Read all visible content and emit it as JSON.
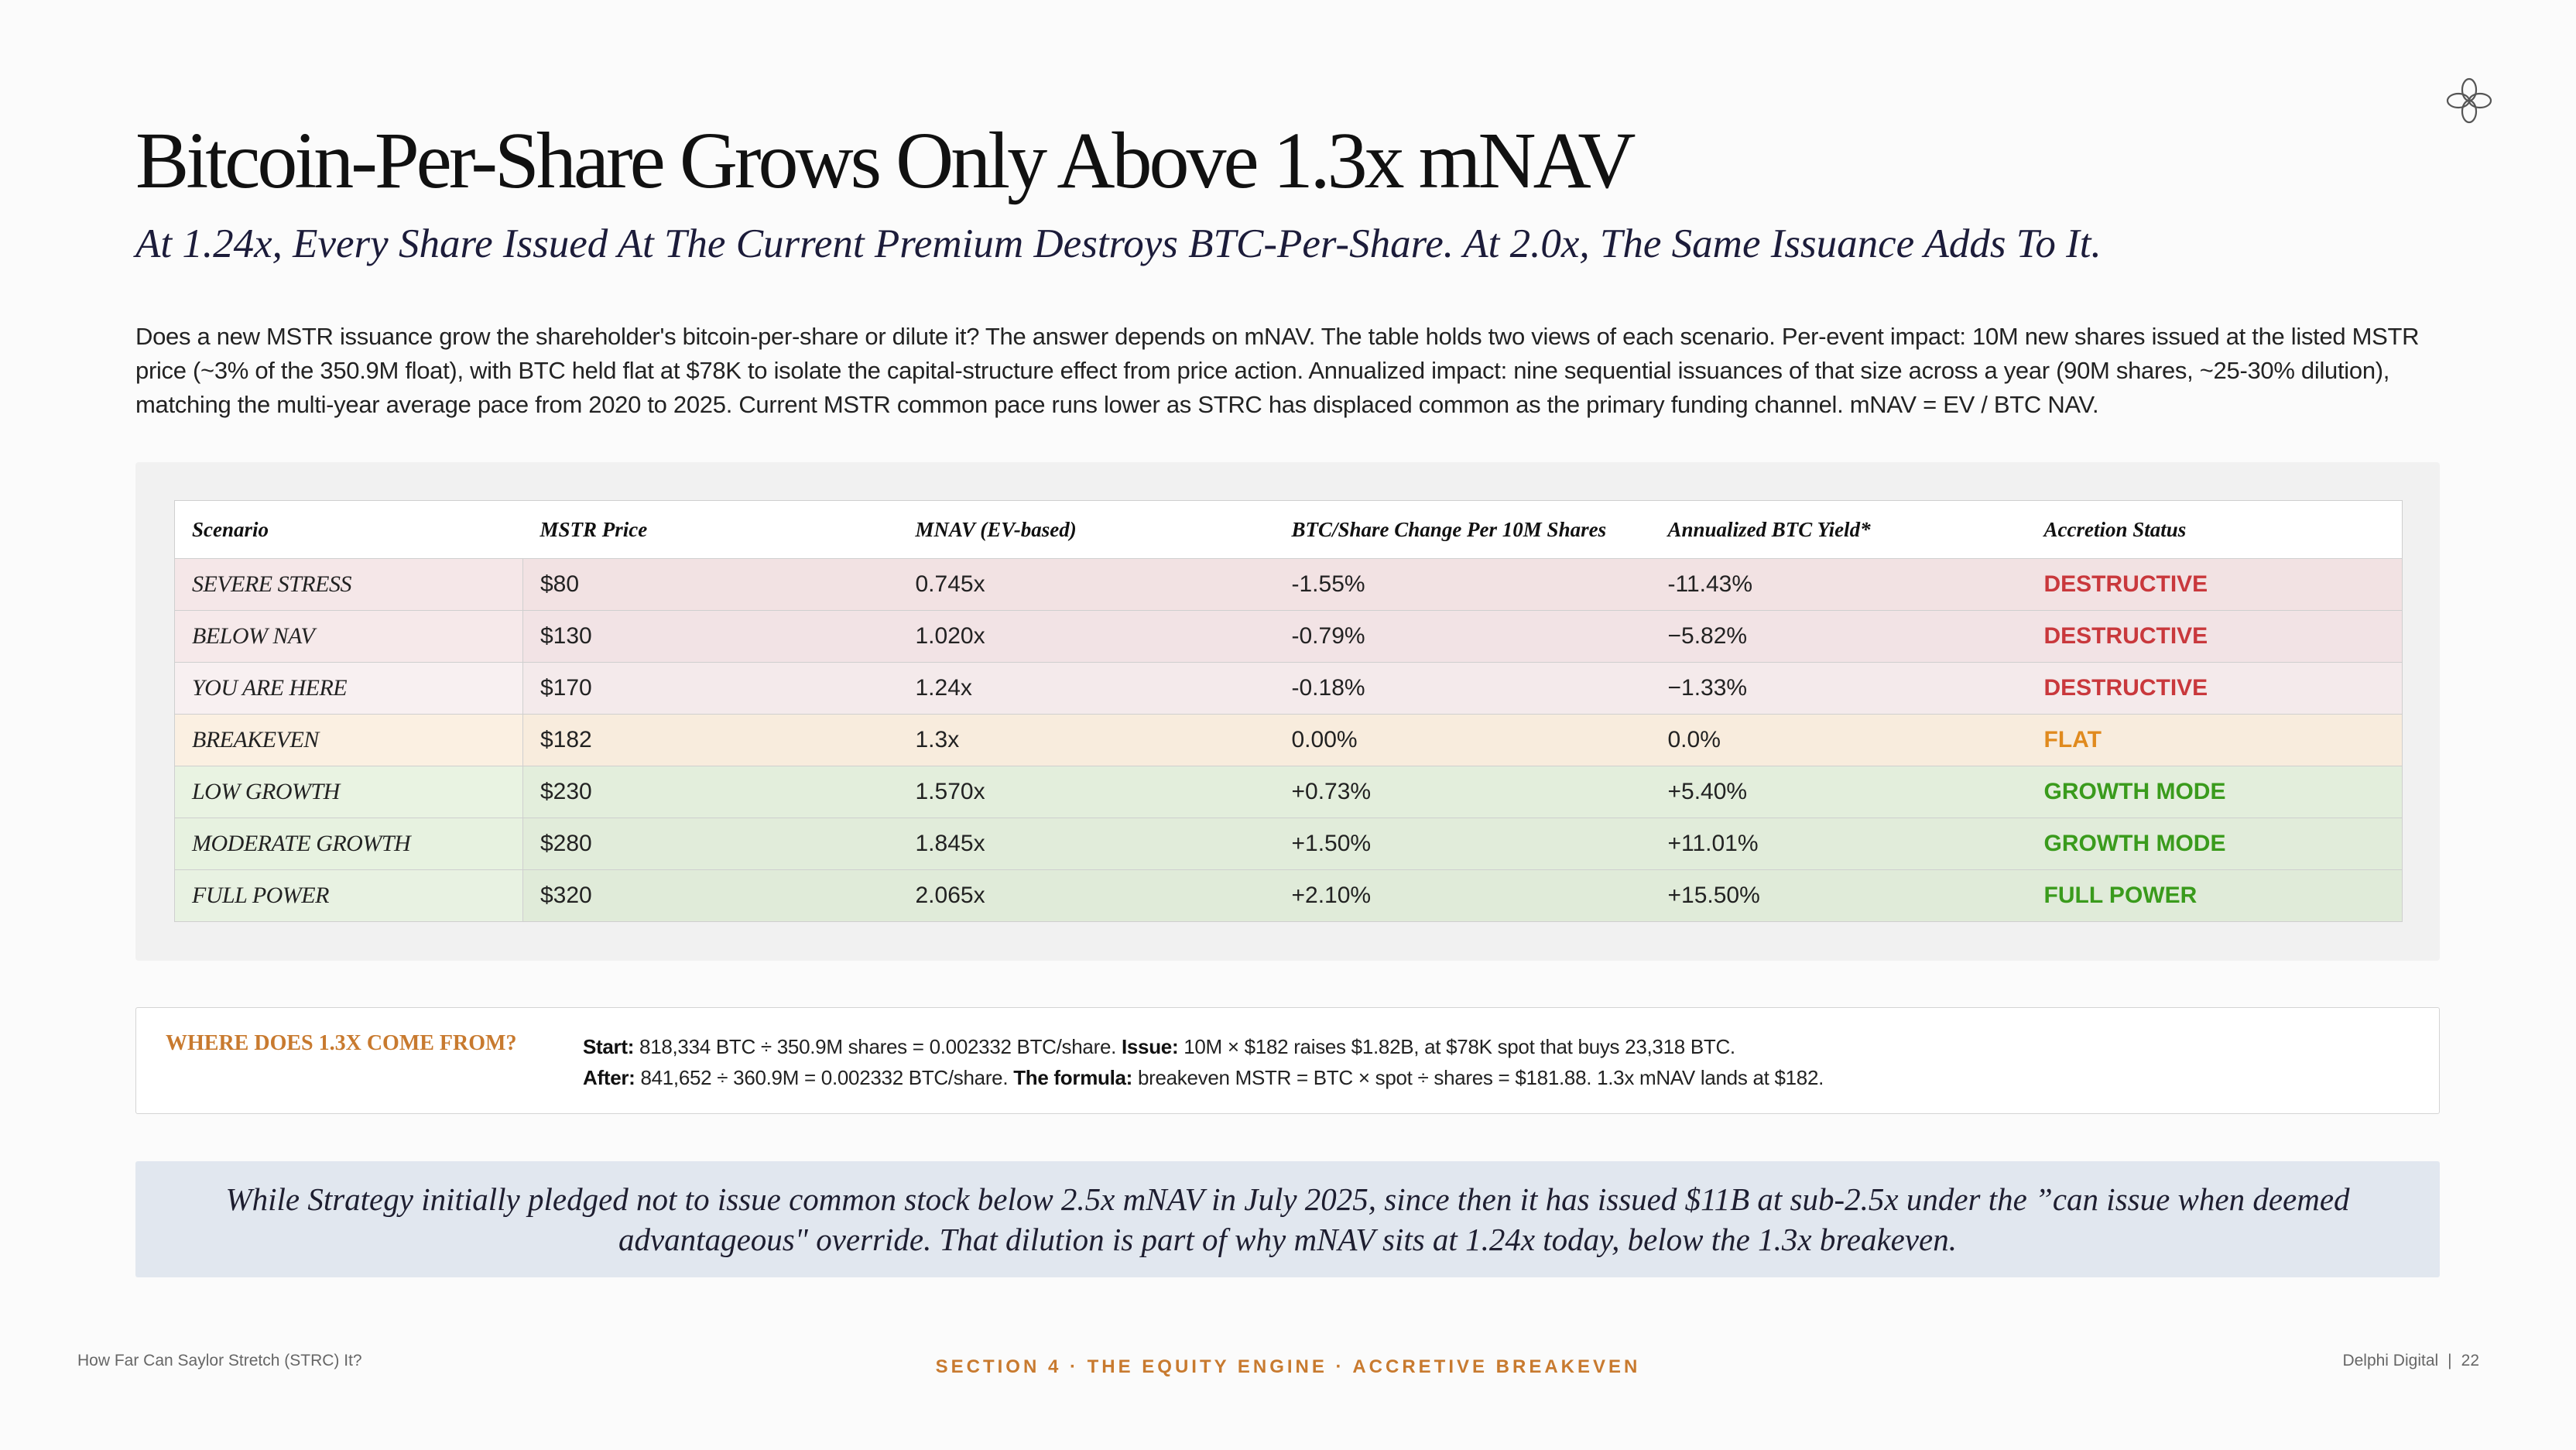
{
  "header": {
    "logo_icon": "flower-logo-icon",
    "title": "Bitcoin-Per-Share Grows Only Above 1.3x mNAV",
    "subtitle": "At 1.24x, Every Share Issued At The Current Premium Destroys BTC-Per-Share. At 2.0x, The Same Issuance Adds To It."
  },
  "intro": "Does a new MSTR issuance grow the shareholder's bitcoin-per-share or dilute it? The answer depends on mNAV. The table holds two views of each scenario. Per-event impact: 10M new shares issued at the listed MSTR price (~3% of the 350.9M float), with BTC held flat at $78K to isolate the capital-structure effect from price action. Annualized impact: nine sequential issuances of that size across a year (90M shares, ~25-30% dilution), matching the multi-year average pace from 2020 to 2025. Current MSTR common pace runs lower as STRC has displaced common as the primary funding channel. mNAV = EV / BTC NAV.",
  "table": {
    "headers": [
      "Scenario",
      "MSTR Price",
      "MNAV (EV-based)",
      "BTC/Share Change Per 10M Shares",
      "Annualized BTC Yield*",
      "Accretion Status"
    ],
    "rows": [
      {
        "scenario": "SEVERE STRESS",
        "price": "$80",
        "mnav": "0.745x",
        "change": "-1.55%",
        "yield": "-11.43%",
        "status": "DESTRUCTIVE",
        "bg": "#f2e2e3",
        "first_bg": "#f5e7e8",
        "status_color": "#c9383c"
      },
      {
        "scenario": "BELOW NAV",
        "price": "$130",
        "mnav": "1.020x",
        "change": "-0.79%",
        "yield": "−5.82%",
        "status": "DESTRUCTIVE",
        "bg": "#f2e3e5",
        "first_bg": "#f6e9ea",
        "status_color": "#c9383c"
      },
      {
        "scenario": "YOU ARE HERE",
        "price": "$170",
        "mnav": "1.24x",
        "change": "-0.18%",
        "yield": "−1.33%",
        "status": "DESTRUCTIVE",
        "bg": "#f4eaeb",
        "first_bg": "#f8f0f1",
        "status_color": "#c9383c"
      },
      {
        "scenario": "BREAKEVEN",
        "price": "$182",
        "mnav": "1.3x",
        "change": "0.00%",
        "yield": "0.0%",
        "status": "FLAT",
        "bg": "#f8ecdd",
        "first_bg": "#fbf0e2",
        "status_color": "#e08a1e"
      },
      {
        "scenario": "LOW GROWTH",
        "price": "$230",
        "mnav": "1.570x",
        "change": "+0.73%",
        "yield": "+5.40%",
        "status": "GROWTH MODE",
        "bg": "#e3eedc",
        "first_bg": "#e9f3e2",
        "status_color": "#3a9b1c"
      },
      {
        "scenario": "MODERATE GROWTH",
        "price": "$280",
        "mnav": "1.845x",
        "change": "+1.50%",
        "yield": "+11.01%",
        "status": "GROWTH MODE",
        "bg": "#e1ecda",
        "first_bg": "#e7f2e0",
        "status_color": "#3a9b1c"
      },
      {
        "scenario": "FULL POWER",
        "price": "$320",
        "mnav": "2.065x",
        "change": "+2.10%",
        "yield": "+15.50%",
        "status": "FULL POWER",
        "bg": "#e0ebd9",
        "first_bg": "#e8f2e2",
        "status_color": "#3a9b1c"
      }
    ]
  },
  "info": {
    "label": "WHERE DOES 1.3X COME FROM?",
    "line1_start_label": "Start:",
    "line1_start_text": " 818,334 BTC ÷ 350.9M shares = 0.002332 BTC/share. ",
    "line1_issue_label": "Issue:",
    "line1_issue_text": " 10M × $182 raises $1.82B, at $78K spot that buys 23,318 BTC.",
    "line2_after_label": "After:",
    "line2_after_text": " 841,652 ÷ 360.9M = 0.002332 BTC/share. ",
    "line2_formula_label": "The formula:",
    "line2_formula_text": " breakeven MSTR = BTC × spot ÷ shares = $181.88. 1.3x mNAV lands at $182."
  },
  "quote": "While Strategy initially pledged not to issue common stock below 2.5x mNAV in July 2025, since then it has issued $11B at sub-2.5x under the ”can issue when deemed advantageous\" override. That dilution is part of why mNAV sits at 1.24x today, below the 1.3x breakeven.",
  "footer": {
    "left": "How Far Can Saylor Stretch (STRC) It?",
    "center": "SECTION 4 · THE EQUITY ENGINE · ACCRETIVE BREAKEVEN",
    "right_brand": "Delphi Digital",
    "right_sep": "|",
    "page_number": "22"
  }
}
